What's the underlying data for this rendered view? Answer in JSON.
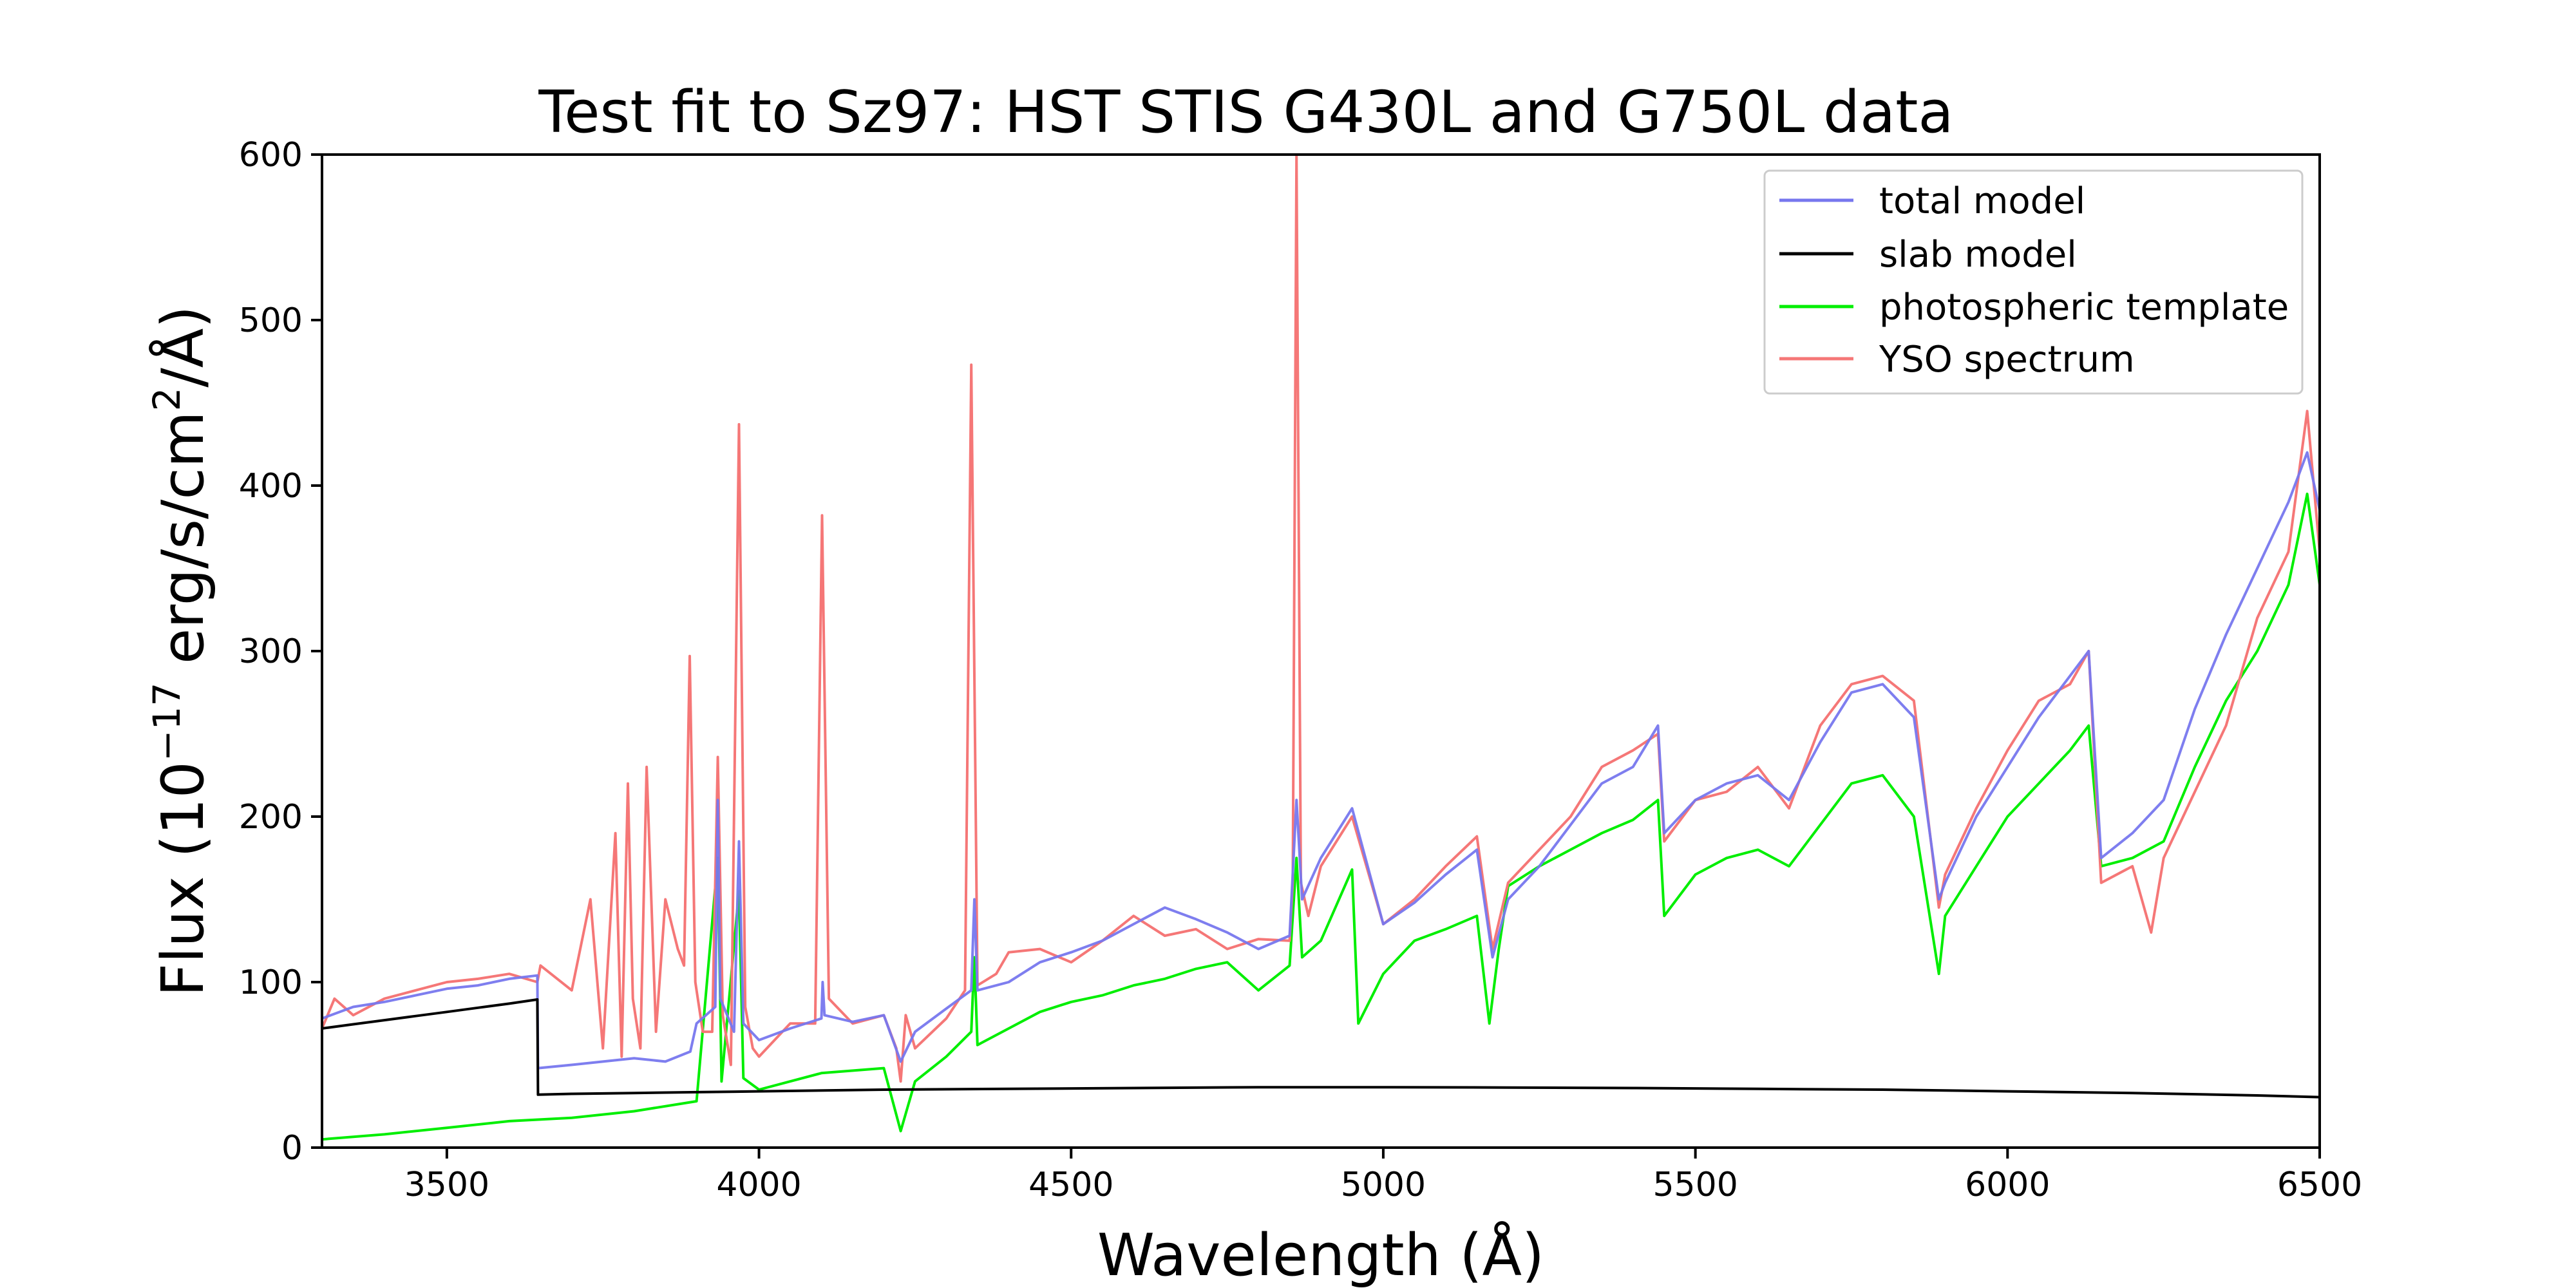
{
  "chart_data": {
    "type": "line",
    "title": "Test fit to Sz97: HST STIS G430L and G750L data",
    "xlabel": "Wavelength (Å)",
    "ylabel_prefix": "Flux (10",
    "ylabel_exp": "−17",
    "ylabel_mid": " erg/s/cm",
    "ylabel_sq": "2",
    "ylabel_suffix": "/Å)",
    "xlim": [
      3300,
      6500
    ],
    "ylim": [
      0,
      600
    ],
    "xticks": [
      3500,
      4000,
      4500,
      5000,
      5500,
      6000,
      6500
    ],
    "yticks": [
      0,
      100,
      200,
      300,
      400,
      500,
      600
    ],
    "legend_position": "top-right",
    "series": [
      {
        "name": "total model",
        "color": "#7777ee",
        "width": 4,
        "x": [
          3300,
          3350,
          3400,
          3450,
          3500,
          3550,
          3600,
          3645,
          3646,
          3700,
          3750,
          3800,
          3850,
          3890,
          3900,
          3930,
          3934,
          3938,
          3960,
          3968,
          3975,
          4000,
          4050,
          4100,
          4102,
          4105,
          4150,
          4200,
          4227,
          4250,
          4300,
          4340,
          4345,
          4350,
          4400,
          4450,
          4500,
          4550,
          4600,
          4650,
          4700,
          4750,
          4800,
          4850,
          4861,
          4870,
          4900,
          4950,
          5000,
          5050,
          5100,
          5150,
          5175,
          5200,
          5250,
          5300,
          5350,
          5400,
          5440,
          5450,
          5500,
          5550,
          5600,
          5650,
          5700,
          5750,
          5800,
          5850,
          5890,
          5900,
          5950,
          6000,
          6050,
          6100,
          6130,
          6150,
          6200,
          6250,
          6300,
          6350,
          6400,
          6450,
          6480,
          6500
        ],
        "y": [
          78,
          85,
          88,
          92,
          96,
          98,
          102,
          104,
          48,
          50,
          52,
          54,
          52,
          58,
          75,
          85,
          210,
          90,
          70,
          185,
          75,
          65,
          72,
          78,
          100,
          80,
          76,
          80,
          52,
          70,
          84,
          95,
          150,
          95,
          100,
          112,
          118,
          125,
          135,
          145,
          138,
          130,
          120,
          128,
          210,
          150,
          175,
          205,
          135,
          148,
          165,
          180,
          115,
          150,
          170,
          195,
          220,
          230,
          255,
          190,
          210,
          220,
          225,
          210,
          245,
          275,
          280,
          260,
          150,
          160,
          200,
          230,
          260,
          285,
          300,
          175,
          190,
          210,
          265,
          310,
          350,
          390,
          420,
          385
        ]
      },
      {
        "name": "slab model",
        "color": "#000000",
        "width": 4,
        "x": [
          3300,
          3350,
          3400,
          3450,
          3500,
          3550,
          3600,
          3645,
          3646,
          3700,
          3800,
          3900,
          4000,
          4200,
          4400,
          4600,
          4800,
          5000,
          5200,
          5400,
          5600,
          5800,
          6000,
          6200,
          6400,
          6500
        ],
        "y": [
          72,
          74.5,
          77,
          79.5,
          82,
          84.5,
          87,
          89.5,
          32,
          32.5,
          33,
          33.5,
          34,
          35,
          35.5,
          36,
          36.5,
          36.5,
          36.3,
          36,
          35.5,
          35,
          34,
          33,
          31.5,
          30.5
        ]
      },
      {
        "name": "photospheric template",
        "color": "#00ee00",
        "width": 4,
        "x": [
          3300,
          3400,
          3500,
          3600,
          3700,
          3800,
          3900,
          3934,
          3940,
          3968,
          3975,
          4000,
          4100,
          4200,
          4227,
          4250,
          4300,
          4340,
          4345,
          4350,
          4400,
          4450,
          4500,
          4550,
          4600,
          4650,
          4700,
          4750,
          4800,
          4850,
          4861,
          4870,
          4900,
          4950,
          4960,
          5000,
          5050,
          5100,
          5150,
          5170,
          5185,
          5200,
          5250,
          5300,
          5350,
          5400,
          5440,
          5450,
          5500,
          5550,
          5600,
          5650,
          5700,
          5750,
          5800,
          5850,
          5890,
          5900,
          5950,
          6000,
          6050,
          6100,
          6130,
          6150,
          6200,
          6250,
          6300,
          6350,
          6400,
          6450,
          6480,
          6500
        ],
        "y": [
          5,
          8,
          12,
          16,
          18,
          22,
          28,
          175,
          40,
          155,
          42,
          35,
          45,
          48,
          10,
          40,
          55,
          70,
          115,
          62,
          72,
          82,
          88,
          92,
          98,
          102,
          108,
          112,
          95,
          110,
          175,
          115,
          125,
          168,
          75,
          105,
          125,
          132,
          140,
          75,
          120,
          158,
          170,
          180,
          190,
          198,
          210,
          140,
          165,
          175,
          180,
          170,
          195,
          220,
          225,
          200,
          105,
          140,
          170,
          200,
          220,
          240,
          255,
          170,
          175,
          185,
          230,
          270,
          300,
          340,
          395,
          340
        ]
      },
      {
        "name": "YSO spectrum",
        "color": "#f57777",
        "width": 4,
        "x": [
          3300,
          3320,
          3350,
          3400,
          3450,
          3500,
          3550,
          3600,
          3645,
          3650,
          3700,
          3730,
          3750,
          3770,
          3780,
          3790,
          3798,
          3810,
          3820,
          3835,
          3850,
          3870,
          3880,
          3889,
          3898,
          3910,
          3925,
          3934,
          3942,
          3955,
          3968,
          3978,
          3990,
          4000,
          4050,
          4090,
          4101,
          4112,
          4150,
          4200,
          4220,
          4227,
          4235,
          4250,
          4300,
          4330,
          4340,
          4350,
          4380,
          4400,
          4450,
          4500,
          4550,
          4600,
          4650,
          4700,
          4750,
          4800,
          4850,
          4855,
          4861,
          4868,
          4880,
          4900,
          4950,
          5000,
          5050,
          5100,
          5150,
          5175,
          5200,
          5250,
          5300,
          5350,
          5400,
          5440,
          5450,
          5500,
          5550,
          5600,
          5650,
          5700,
          5750,
          5800,
          5850,
          5890,
          5900,
          5950,
          6000,
          6050,
          6100,
          6130,
          6150,
          6200,
          6230,
          6250,
          6300,
          6350,
          6400,
          6450,
          6480,
          6500
        ],
        "y": [
          72,
          90,
          80,
          90,
          95,
          100,
          102,
          105,
          100,
          110,
          95,
          150,
          60,
          190,
          55,
          220,
          90,
          60,
          230,
          70,
          150,
          120,
          110,
          297,
          100,
          70,
          70,
          236,
          80,
          50,
          437,
          85,
          60,
          55,
          75,
          75,
          382,
          90,
          75,
          80,
          60,
          40,
          80,
          60,
          78,
          95,
          473,
          98,
          105,
          118,
          120,
          112,
          125,
          140,
          128,
          132,
          120,
          126,
          125,
          160,
          600,
          160,
          140,
          170,
          200,
          135,
          150,
          170,
          188,
          120,
          160,
          180,
          200,
          230,
          240,
          250,
          185,
          210,
          215,
          230,
          205,
          255,
          280,
          285,
          270,
          145,
          165,
          205,
          240,
          270,
          280,
          300,
          160,
          170,
          130,
          175,
          215,
          255,
          320,
          360,
          445,
          360
        ]
      }
    ]
  }
}
